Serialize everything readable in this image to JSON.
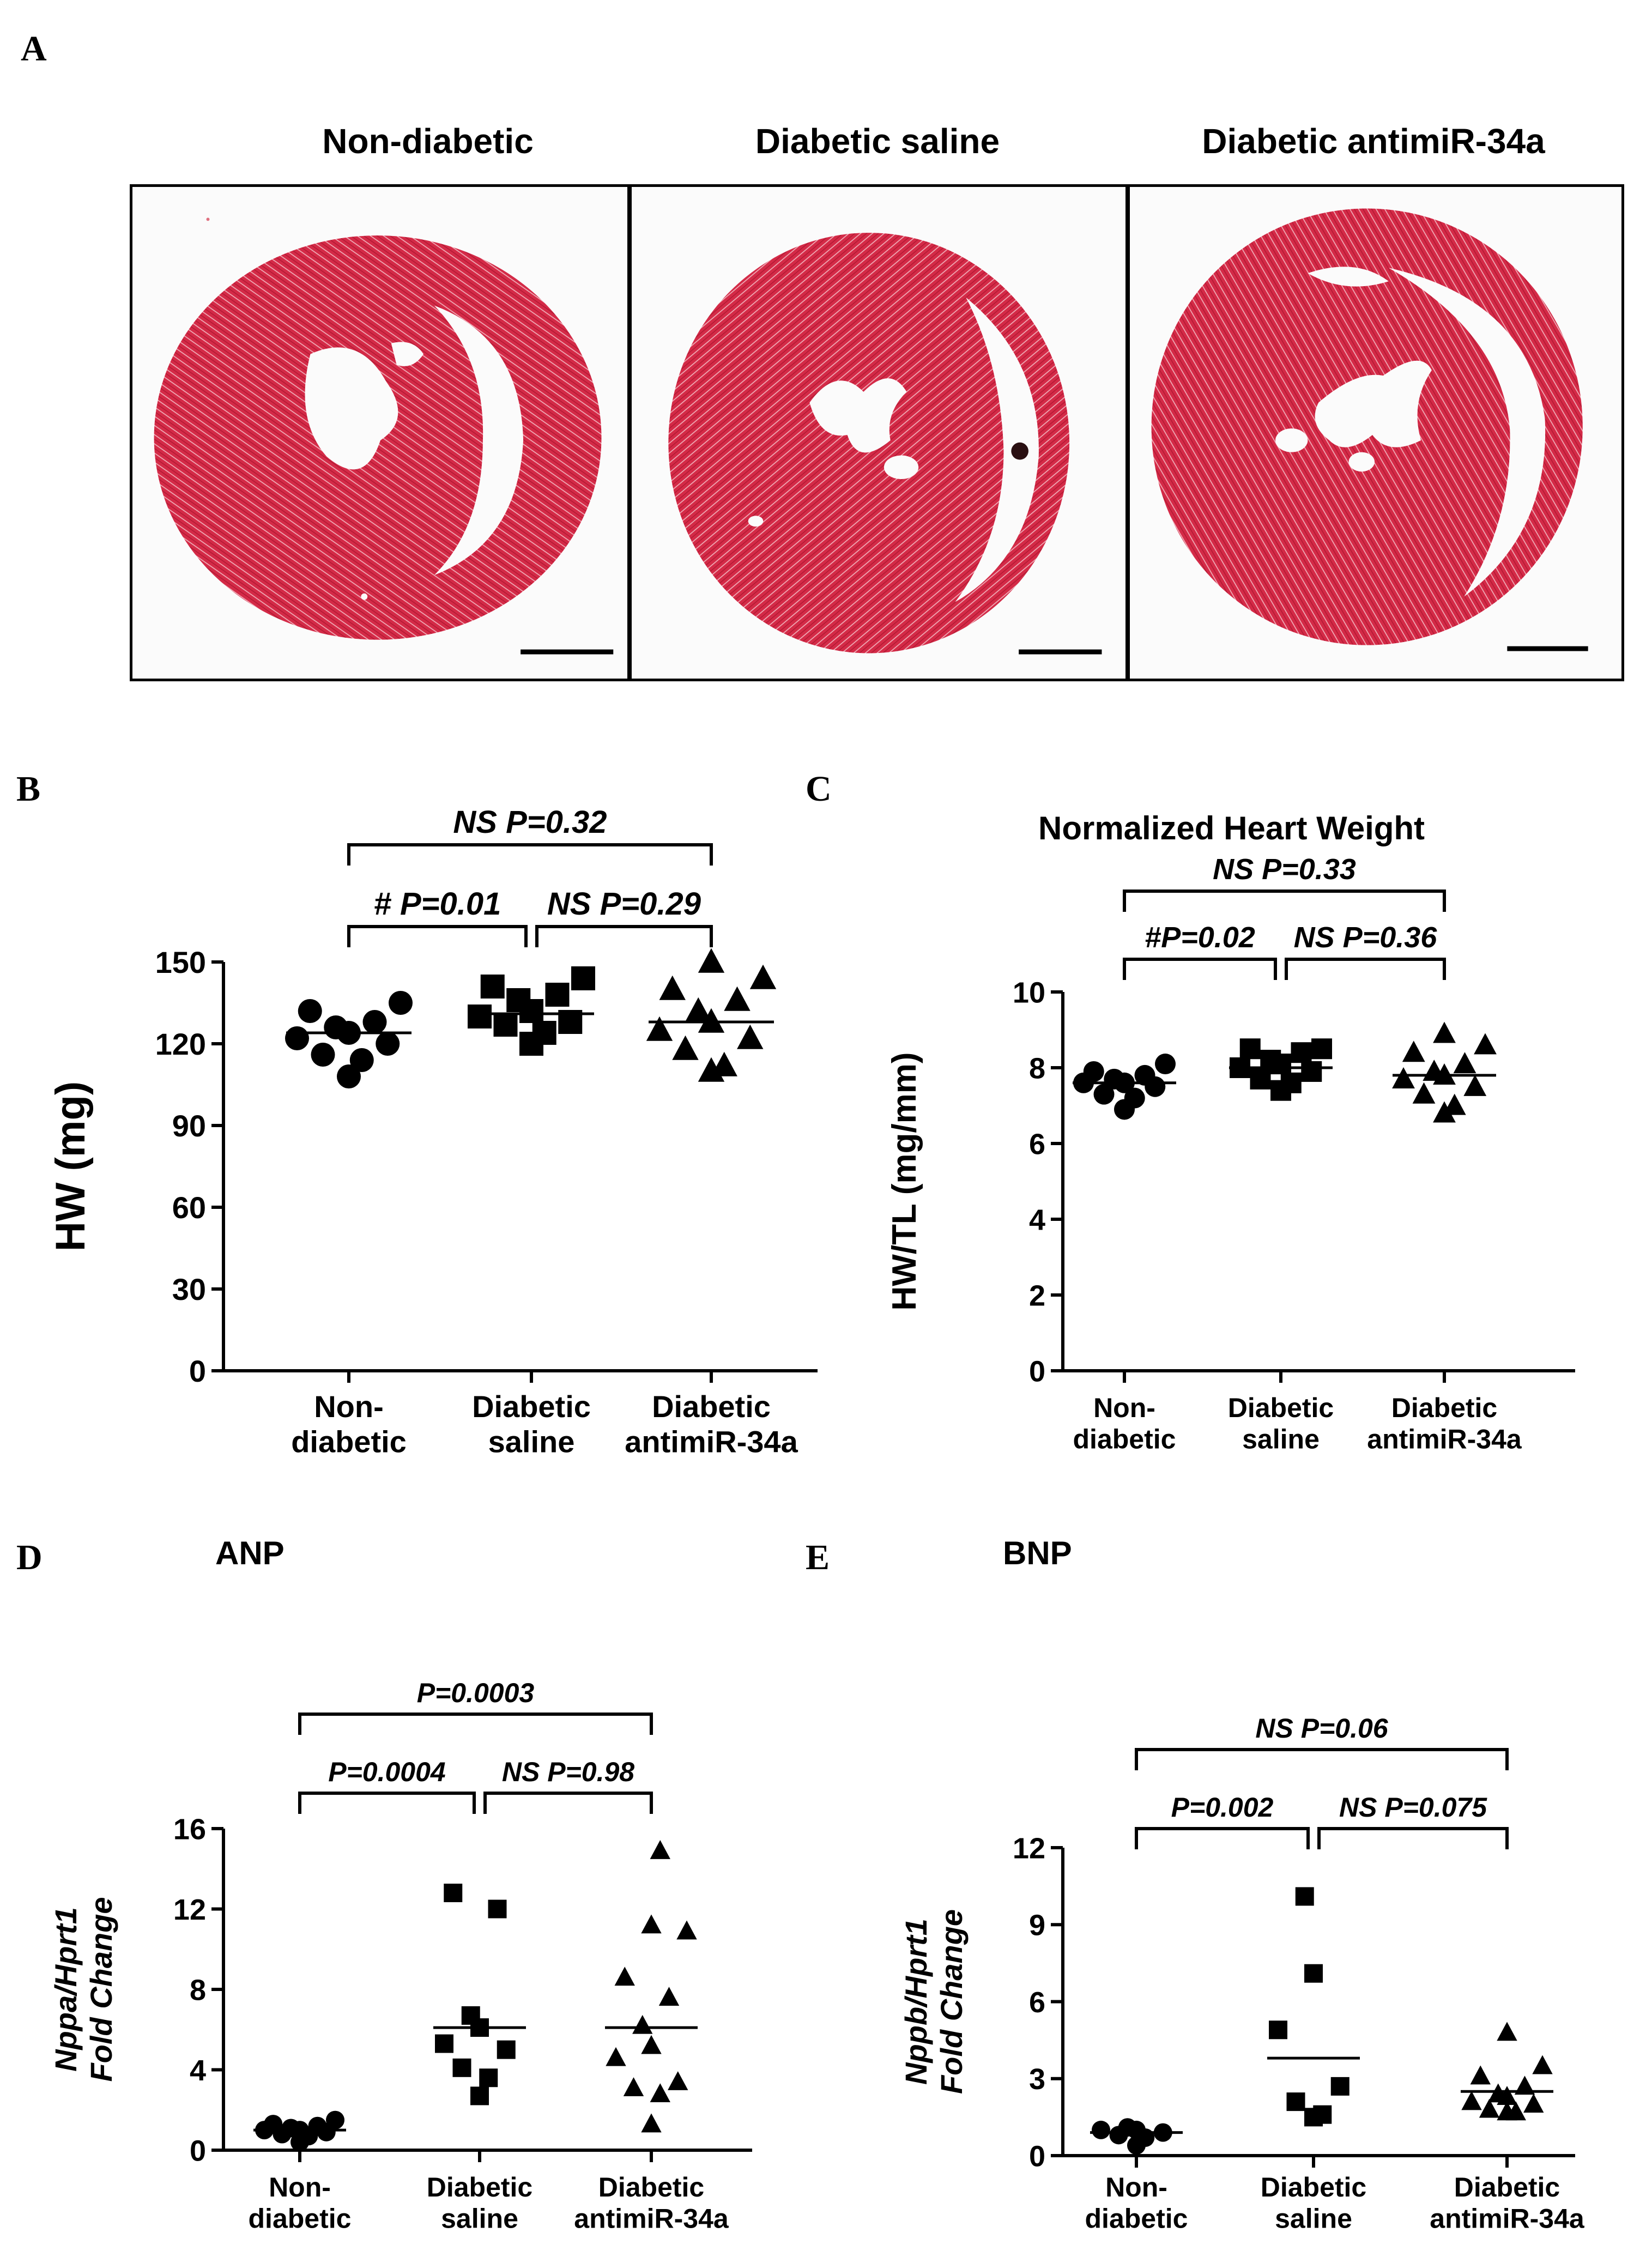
{
  "panels": {
    "a": {
      "letter": "A"
    },
    "b": {
      "letter": "B"
    },
    "c": {
      "letter": "C"
    },
    "d": {
      "letter": "D"
    },
    "e": {
      "letter": "E"
    }
  },
  "histology": [
    {
      "title": "Non-diabetic"
    },
    {
      "title": "Diabetic saline"
    },
    {
      "title": "Diabetic antimiR-34a"
    }
  ],
  "colors": {
    "tissue": "#d42a47",
    "tissue_dark": "#a8152f",
    "background": "#fbfbfb",
    "marker": "#000000"
  },
  "chart_data": [
    {
      "id": "B",
      "type": "scatter",
      "title": "",
      "ylabel": "HW (mg)",
      "ylim": [
        0,
        150
      ],
      "yticks": [
        0,
        30,
        60,
        90,
        120,
        150
      ],
      "categories": [
        {
          "lines": [
            "Non-",
            "diabetic"
          ]
        },
        {
          "lines": [
            "Diabetic",
            "saline"
          ]
        },
        {
          "lines": [
            "Diabetic",
            "antimiR-34a"
          ]
        }
      ],
      "series": [
        {
          "marker": "circle",
          "mean": 124,
          "values": [
            108,
            114,
            116,
            120,
            122,
            124,
            126,
            128,
            132,
            135
          ]
        },
        {
          "marker": "square",
          "mean": 131,
          "values": [
            120,
            124,
            127,
            128,
            130,
            132,
            136,
            138,
            141,
            144
          ]
        },
        {
          "marker": "triangle",
          "mean": 128,
          "values": [
            110,
            112,
            118,
            122,
            125,
            128,
            132,
            136,
            140,
            144,
            150
          ]
        }
      ],
      "brackets": [
        {
          "from": 0,
          "to": 1,
          "label": "# P=0.01",
          "level": 0
        },
        {
          "from": 1,
          "to": 2,
          "label": "NS P=0.29",
          "level": 0
        },
        {
          "from": 0,
          "to": 2,
          "label": "NS P=0.32",
          "level": 1
        }
      ]
    },
    {
      "id": "C",
      "type": "scatter",
      "title": "Normalized Heart Weight",
      "ylabel": "HW/TL (mg/mm)",
      "ylim": [
        0,
        10
      ],
      "yticks": [
        0,
        2,
        4,
        6,
        8,
        10
      ],
      "categories": [
        {
          "lines": [
            "Non-",
            "diabetic"
          ]
        },
        {
          "lines": [
            "Diabetic",
            "saline"
          ]
        },
        {
          "lines": [
            "Diabetic",
            "antimiR-34a"
          ]
        }
      ],
      "series": [
        {
          "marker": "circle",
          "mean": 7.6,
          "values": [
            6.9,
            7.2,
            7.3,
            7.5,
            7.6,
            7.6,
            7.7,
            7.8,
            7.9,
            8.1
          ]
        },
        {
          "marker": "square",
          "mean": 8.0,
          "values": [
            7.4,
            7.6,
            7.7,
            7.9,
            8.0,
            8.1,
            8.2,
            8.4,
            8.5,
            8.5
          ]
        },
        {
          "marker": "triangle",
          "mean": 7.8,
          "values": [
            6.8,
            7.0,
            7.3,
            7.5,
            7.7,
            7.8,
            7.9,
            8.1,
            8.4,
            8.6,
            8.9
          ]
        }
      ],
      "brackets": [
        {
          "from": 0,
          "to": 1,
          "label": "#P=0.02",
          "level": 0
        },
        {
          "from": 1,
          "to": 2,
          "label": "NS P=0.36",
          "level": 0
        },
        {
          "from": 0,
          "to": 2,
          "label": "NS P=0.33",
          "level": 1
        }
      ]
    },
    {
      "id": "D",
      "type": "scatter",
      "title": "ANP",
      "ylabel": "Nppa/Hprt1",
      "ylabel2": "Fold Change",
      "ylim": [
        0,
        16
      ],
      "yticks": [
        0,
        4,
        8,
        12,
        16
      ],
      "categories": [
        {
          "lines": [
            "Non-",
            "diabetic"
          ]
        },
        {
          "lines": [
            "Diabetic",
            "saline"
          ]
        },
        {
          "lines": [
            "Diabetic",
            "antimiR-34a"
          ]
        }
      ],
      "series": [
        {
          "marker": "circle",
          "mean": 1.0,
          "values": [
            0.4,
            0.7,
            0.8,
            0.9,
            1.0,
            1.0,
            1.1,
            1.2,
            1.3,
            1.5
          ]
        },
        {
          "marker": "square",
          "mean": 6.1,
          "values": [
            2.7,
            3.6,
            4.1,
            5.0,
            5.3,
            6.1,
            6.7,
            12.0,
            12.8
          ]
        },
        {
          "marker": "triangle",
          "mean": 6.1,
          "values": [
            1.3,
            2.8,
            3.1,
            3.4,
            4.6,
            5.2,
            6.2,
            7.6,
            8.6,
            10.9,
            11.2,
            14.9
          ]
        }
      ],
      "brackets": [
        {
          "from": 0,
          "to": 1,
          "label": "P=0.0004",
          "level": 0
        },
        {
          "from": 1,
          "to": 2,
          "label": "NS P=0.98",
          "level": 0
        },
        {
          "from": 0,
          "to": 2,
          "label": "P=0.0003",
          "level": 1
        }
      ]
    },
    {
      "id": "E",
      "type": "scatter",
      "title": "BNP",
      "ylabel": "Nppb/Hprt1",
      "ylabel2": "Fold Change",
      "ylim": [
        0,
        12
      ],
      "yticks": [
        0,
        3,
        6,
        9,
        12
      ],
      "categories": [
        {
          "lines": [
            "Non-",
            "diabetic"
          ]
        },
        {
          "lines": [
            "Diabetic",
            "saline"
          ]
        },
        {
          "lines": [
            "Diabetic",
            "antimiR-34a"
          ]
        }
      ],
      "series": [
        {
          "marker": "circle",
          "mean": 0.9,
          "values": [
            0.4,
            0.7,
            0.8,
            0.9,
            1.0,
            1.0,
            1.1
          ]
        },
        {
          "marker": "square",
          "mean": 3.8,
          "values": [
            1.5,
            1.6,
            2.1,
            2.7,
            4.9,
            7.1,
            10.1
          ]
        },
        {
          "marker": "triangle",
          "mean": 2.5,
          "values": [
            1.7,
            1.7,
            1.8,
            2.0,
            2.1,
            2.3,
            2.4,
            2.7,
            3.1,
            3.5,
            4.8
          ]
        }
      ],
      "brackets": [
        {
          "from": 0,
          "to": 1,
          "label": "P=0.002",
          "level": 0
        },
        {
          "from": 1,
          "to": 2,
          "label": "NS P=0.075",
          "level": 0
        },
        {
          "from": 0,
          "to": 2,
          "label": "NS P=0.06",
          "level": 1
        }
      ]
    }
  ]
}
